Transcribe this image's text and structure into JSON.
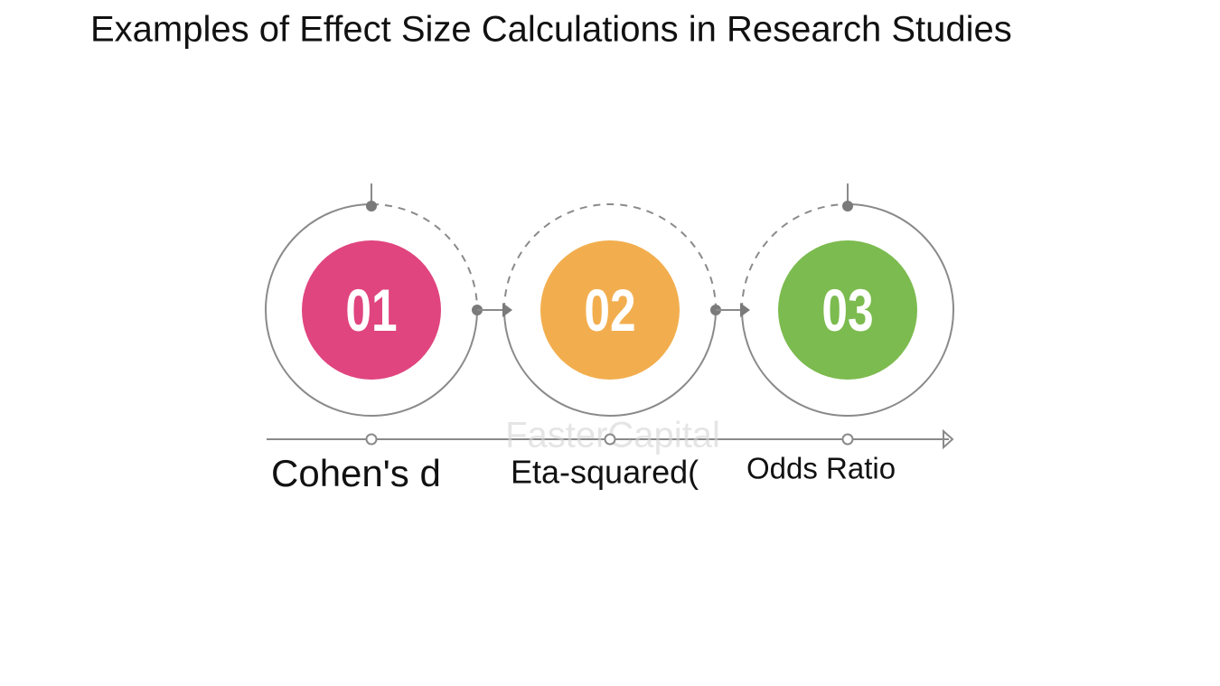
{
  "title": "Examples of Effect Size Calculations in Research Studies",
  "watermark": "FasterCapital",
  "steps": [
    {
      "number": "01",
      "label": "Cohen's d",
      "color": "#e0457f"
    },
    {
      "number": "02",
      "label": "Eta-squared(",
      "color": "#f2ae4e"
    },
    {
      "number": "03",
      "label": "Odds Ratio",
      "color": "#7cbb4f"
    }
  ]
}
